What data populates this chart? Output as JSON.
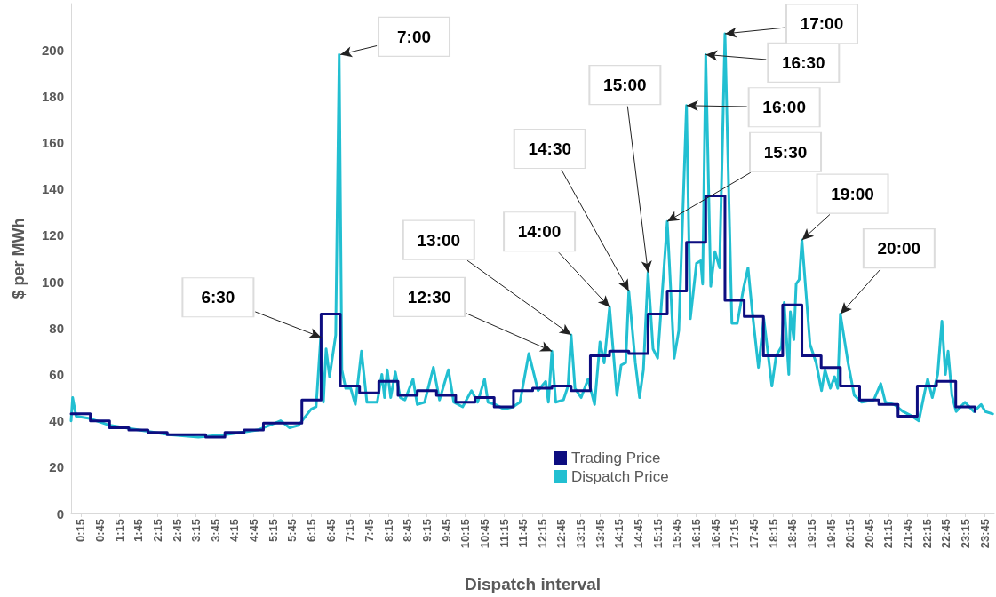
{
  "chart_data": {
    "type": "line",
    "xlabel": "Dispatch interval",
    "ylabel": "$ per MWh",
    "xlim": [
      0,
      24
    ],
    "ylim": [
      0,
      220
    ],
    "xticks": [
      {
        "value": 0.25,
        "label": "0:15"
      },
      {
        "value": 0.75,
        "label": "0:45"
      },
      {
        "value": 1.25,
        "label": "1:15"
      },
      {
        "value": 1.75,
        "label": "1:45"
      },
      {
        "value": 2.25,
        "label": "2:15"
      },
      {
        "value": 2.75,
        "label": "2:45"
      },
      {
        "value": 3.25,
        "label": "3:15"
      },
      {
        "value": 3.75,
        "label": "3:45"
      },
      {
        "value": 4.25,
        "label": "4:15"
      },
      {
        "value": 4.75,
        "label": "4:45"
      },
      {
        "value": 5.25,
        "label": "5:15"
      },
      {
        "value": 5.75,
        "label": "5:45"
      },
      {
        "value": 6.25,
        "label": "6:15"
      },
      {
        "value": 6.75,
        "label": "6:45"
      },
      {
        "value": 7.25,
        "label": "7:15"
      },
      {
        "value": 7.75,
        "label": "7:45"
      },
      {
        "value": 8.25,
        "label": "8:15"
      },
      {
        "value": 8.75,
        "label": "8:45"
      },
      {
        "value": 9.25,
        "label": "9:15"
      },
      {
        "value": 9.75,
        "label": "9:45"
      },
      {
        "value": 10.25,
        "label": "10:15"
      },
      {
        "value": 10.75,
        "label": "10:45"
      },
      {
        "value": 11.25,
        "label": "11:15"
      },
      {
        "value": 11.75,
        "label": "11:45"
      },
      {
        "value": 12.25,
        "label": "12:15"
      },
      {
        "value": 12.75,
        "label": "12:45"
      },
      {
        "value": 13.25,
        "label": "13:15"
      },
      {
        "value": 13.75,
        "label": "13:45"
      },
      {
        "value": 14.25,
        "label": "14:15"
      },
      {
        "value": 14.75,
        "label": "14:45"
      },
      {
        "value": 15.25,
        "label": "15:15"
      },
      {
        "value": 15.75,
        "label": "15:45"
      },
      {
        "value": 16.25,
        "label": "16:15"
      },
      {
        "value": 16.75,
        "label": "16:45"
      },
      {
        "value": 17.25,
        "label": "17:15"
      },
      {
        "value": 17.75,
        "label": "17:45"
      },
      {
        "value": 18.25,
        "label": "18:15"
      },
      {
        "value": 18.75,
        "label": "18:45"
      },
      {
        "value": 19.25,
        "label": "19:15"
      },
      {
        "value": 19.75,
        "label": "19:45"
      },
      {
        "value": 20.25,
        "label": "20:15"
      },
      {
        "value": 20.75,
        "label": "20:45"
      },
      {
        "value": 21.25,
        "label": "21:15"
      },
      {
        "value": 21.75,
        "label": "21:45"
      },
      {
        "value": 22.25,
        "label": "22:15"
      },
      {
        "value": 22.75,
        "label": "22:45"
      },
      {
        "value": 23.25,
        "label": "23:15"
      },
      {
        "value": 23.75,
        "label": "23:45"
      }
    ],
    "yticks": [
      0,
      20,
      40,
      60,
      80,
      100,
      120,
      140,
      160,
      180,
      200
    ],
    "grid": false,
    "legend": "bottom",
    "marker": "none",
    "series": [
      {
        "name": "Trading Price",
        "type": "step",
        "color": "#0d0d80",
        "x": [
          0,
          0.5,
          1,
          1.5,
          2,
          2.5,
          3,
          3.5,
          4,
          4.5,
          5,
          5.5,
          6,
          6.5,
          7,
          7.5,
          8,
          8.5,
          9,
          9.5,
          10,
          10.5,
          11,
          11.5,
          12,
          12.5,
          13,
          13.5,
          14,
          14.5,
          15,
          15.5,
          16,
          16.5,
          17,
          17.5,
          18,
          18.5,
          19,
          19.5,
          20,
          20.5,
          21,
          21.5,
          22,
          22.5,
          23,
          23.5
        ],
        "values": [
          43,
          40,
          37,
          36,
          35,
          34,
          34,
          33,
          35,
          36,
          39,
          39,
          49,
          86,
          55,
          52,
          57,
          51,
          53,
          51,
          48,
          50,
          46,
          53,
          54,
          55,
          53,
          68,
          70,
          69,
          86,
          96,
          117,
          137,
          92,
          85,
          68,
          90,
          68,
          63,
          55,
          49,
          47,
          42,
          55,
          57,
          46,
          44
        ]
      },
      {
        "name": "Dispatch Price",
        "type": "line",
        "color": "#22bfd1",
        "x": [
          0,
          0.04,
          0.13,
          0.48,
          1.01,
          1.77,
          2.55,
          3.31,
          4.0,
          4.85,
          5.45,
          5.68,
          5.91,
          6.24,
          6.37,
          6.49,
          6.56,
          6.63,
          6.72,
          6.88,
          6.97,
          7.04,
          7.14,
          7.27,
          7.39,
          7.55,
          7.69,
          7.96,
          8.08,
          8.15,
          8.22,
          8.31,
          8.43,
          8.56,
          8.68,
          8.89,
          9.0,
          9.19,
          9.42,
          9.58,
          9.81,
          9.95,
          10.18,
          10.41,
          10.57,
          10.75,
          10.84,
          11.03,
          11.26,
          11.49,
          11.67,
          11.9,
          12.14,
          12.34,
          12.41,
          12.5,
          12.6,
          12.8,
          12.92,
          13.0,
          13.1,
          13.26,
          13.44,
          13.61,
          13.75,
          13.86,
          14.0,
          14.19,
          14.3,
          14.42,
          14.5,
          14.67,
          14.78,
          14.88,
          15.0,
          15.13,
          15.25,
          15.5,
          15.68,
          15.8,
          16.0,
          16.1,
          16.26,
          16.37,
          16.42,
          16.5,
          16.63,
          16.74,
          16.86,
          17.0,
          17.18,
          17.32,
          17.48,
          17.6,
          17.71,
          17.87,
          18.01,
          18.22,
          18.33,
          18.47,
          18.54,
          18.66,
          18.7,
          18.79,
          18.85,
          18.93,
          19.0,
          19.21,
          19.37,
          19.51,
          19.6,
          19.74,
          19.85,
          19.93,
          20.0,
          20.2,
          20.36,
          20.55,
          20.87,
          21.05,
          21.17,
          21.4,
          21.63,
          21.86,
          22.04,
          22.2,
          22.27,
          22.39,
          22.53,
          22.64,
          22.73,
          22.8,
          22.9,
          23.01,
          23.24,
          23.47,
          23.66,
          23.77,
          23.96
        ],
        "values": [
          40,
          50,
          42,
          41,
          38,
          36,
          34,
          33,
          34,
          36,
          40,
          37,
          38,
          45,
          46,
          76,
          48,
          71,
          59,
          77,
          198,
          62,
          54,
          54,
          47,
          70,
          48,
          48,
          60,
          50,
          62,
          50,
          61,
          50,
          49,
          58,
          47,
          48,
          63,
          49,
          62,
          48,
          46,
          53,
          48,
          58,
          48,
          47,
          45,
          46,
          48,
          69,
          53,
          57,
          48,
          70,
          48,
          49,
          55,
          77,
          54,
          50,
          58,
          47,
          74,
          65,
          89,
          51,
          64,
          65,
          96,
          65,
          50,
          62,
          104,
          71,
          67,
          126,
          67,
          79,
          176,
          84,
          108,
          109,
          99,
          198,
          98,
          113,
          106,
          207,
          82,
          82,
          97,
          106,
          87,
          63,
          84,
          55,
          68,
          72,
          91,
          60,
          87,
          75,
          99,
          101,
          118,
          73,
          65,
          53,
          62,
          54,
          59,
          54,
          86,
          65,
          51,
          48,
          49,
          56,
          48,
          47,
          44,
          42,
          40,
          53,
          58,
          50,
          60,
          83,
          60,
          70,
          51,
          44,
          48,
          44,
          47,
          44,
          43
        ]
      }
    ],
    "annotations": [
      {
        "text": "6:30",
        "x": 6.5,
        "y": 76
      },
      {
        "text": "7:00",
        "x": 7.0,
        "y": 198
      },
      {
        "text": "12:30",
        "x": 12.5,
        "y": 70
      },
      {
        "text": "13:00",
        "x": 13.0,
        "y": 77
      },
      {
        "text": "14:00",
        "x": 14.0,
        "y": 89
      },
      {
        "text": "14:30",
        "x": 14.5,
        "y": 96
      },
      {
        "text": "15:00",
        "x": 15.0,
        "y": 104
      },
      {
        "text": "15:30",
        "x": 15.5,
        "y": 126
      },
      {
        "text": "16:00",
        "x": 16.0,
        "y": 176
      },
      {
        "text": "16:30",
        "x": 16.5,
        "y": 198
      },
      {
        "text": "17:00",
        "x": 17.0,
        "y": 207
      },
      {
        "text": "19:00",
        "x": 19.0,
        "y": 118
      },
      {
        "text": "20:00",
        "x": 20.0,
        "y": 86
      }
    ]
  }
}
